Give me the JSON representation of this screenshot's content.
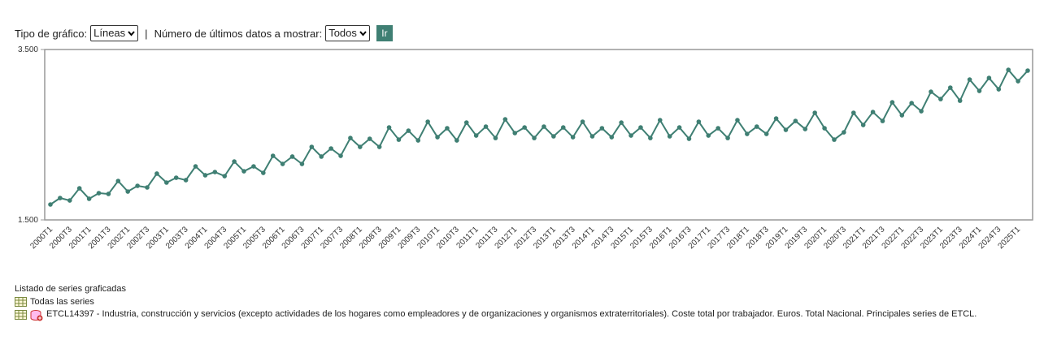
{
  "controls": {
    "chart_type_label": "Tipo de gráfico:",
    "chart_type": "Líneas",
    "separator": "|",
    "last_data_label": "Número de últimos datos a mostrar:",
    "last_data": "Todos",
    "button": "Ir"
  },
  "chart_data": {
    "type": "line",
    "color": "#3f7f73",
    "categories": [
      "2000T1",
      null,
      "2000T3",
      null,
      "2001T1",
      null,
      "2001T3",
      null,
      "2002T1",
      null,
      "2002T3",
      null,
      "2003T1",
      null,
      "2003T3",
      null,
      "2004T1",
      null,
      "2004T3",
      null,
      "2005T1",
      null,
      "2005T3",
      null,
      "2006T1",
      null,
      "2006T3",
      null,
      "2007T1",
      null,
      "2007T3",
      null,
      "2008T1",
      null,
      "2008T3",
      null,
      "2009T1",
      null,
      "2009T3",
      null,
      "2010T1",
      null,
      "2010T3",
      null,
      "2011T1",
      null,
      "2011T3",
      null,
      "2012T1",
      null,
      "2012T3",
      null,
      "2013T1",
      null,
      "2013T3",
      null,
      "2014T1",
      null,
      "2014T3",
      null,
      "2015T1",
      null,
      "2015T3",
      null,
      "2016T1",
      null,
      "2016T3",
      null,
      "2017T1",
      null,
      "2017T3",
      null,
      "2018T1",
      null,
      "2018T3",
      null,
      "2019T1",
      null,
      "2019T3",
      null,
      "2020T1",
      null,
      "2020T3",
      null,
      "2021T1",
      null,
      "2021T3",
      null,
      "2022T1",
      null,
      "2022T3",
      null,
      "2023T1",
      null,
      "2023T3",
      null,
      "2024T1",
      null,
      "2024T3",
      null,
      "2025T1",
      null
    ],
    "values": [
      1681,
      1757,
      1728,
      1871,
      1748,
      1814,
      1805,
      1957,
      1833,
      1900,
      1881,
      2043,
      1938,
      1995,
      1967,
      2128,
      2024,
      2062,
      2014,
      2185,
      2071,
      2128,
      2052,
      2252,
      2157,
      2243,
      2157,
      2357,
      2243,
      2338,
      2252,
      2461,
      2357,
      2452,
      2357,
      2585,
      2442,
      2547,
      2433,
      2652,
      2471,
      2576,
      2433,
      2642,
      2490,
      2595,
      2461,
      2680,
      2519,
      2585,
      2461,
      2595,
      2481,
      2585,
      2471,
      2652,
      2481,
      2576,
      2471,
      2642,
      2490,
      2585,
      2461,
      2671,
      2481,
      2585,
      2452,
      2652,
      2490,
      2576,
      2461,
      2671,
      2509,
      2595,
      2509,
      2690,
      2557,
      2661,
      2566,
      2757,
      2576,
      2442,
      2528,
      2757,
      2614,
      2766,
      2661,
      2880,
      2728,
      2871,
      2776,
      3004,
      2918,
      3052,
      2899,
      3147,
      3014,
      3166,
      3033,
      3261,
      3128,
      3252
    ],
    "ylim": [
      1500,
      3500
    ],
    "yticks": [
      {
        "value": 1500,
        "label": "1.500"
      },
      {
        "value": 3500,
        "label": "3.500"
      }
    ]
  },
  "series_list": {
    "title": "Listado de series graficadas",
    "all": "Todas las series",
    "items": [
      "ETCL14397 - Industria, construcción y servicios (excepto actividades de los hogares como empleadores y de organizaciones y organismos extraterritoriales). Coste total por trabajador. Euros. Total Nacional. Principales series de ETCL."
    ]
  }
}
